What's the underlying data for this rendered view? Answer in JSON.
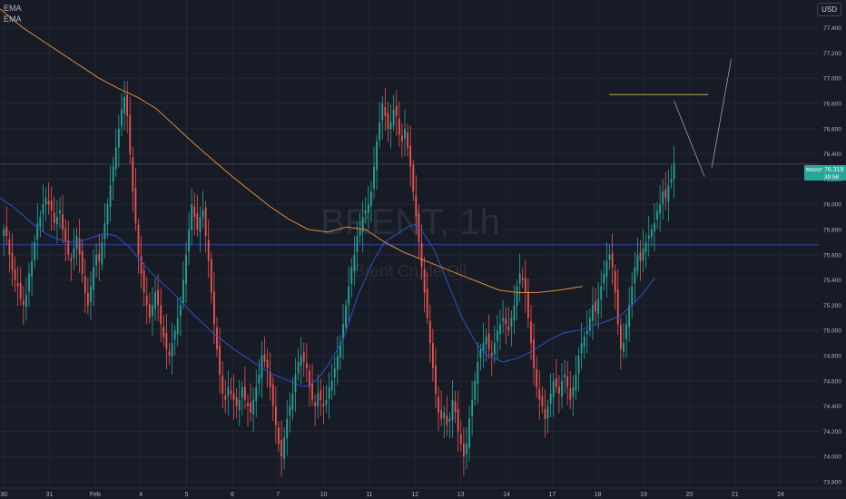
{
  "legend": {
    "items": [
      "EMA",
      "EMA"
    ]
  },
  "currency_button": "USD",
  "price_tag": {
    "symbol": "BRENT",
    "price": "76.319",
    "countdown": "39:58",
    "color": "#26a69a"
  },
  "watermark": {
    "symbol": "BRENT, 1h",
    "name": "Brent Crude Oil"
  },
  "colors": {
    "background": "#171b26",
    "up": "#26a69a",
    "down": "#ef5350",
    "ema_fast": "#2f4fc9",
    "ema_slow": "#d98b3a",
    "grid": "#232733",
    "axis_text": "#b2b5be"
  },
  "chart_data": {
    "type": "candlestick",
    "title": "",
    "timeframe": "1h",
    "y_ticks": [
      "77.400",
      "77.200",
      "77.000",
      "76.800",
      "76.600",
      "76.400",
      "76.200",
      "76.000",
      "75.800",
      "75.600",
      "75.400",
      "75.200",
      "75.000",
      "74.800",
      "74.600",
      "74.400",
      "74.200",
      "74.000",
      "73.800"
    ],
    "ylim": [
      73.75,
      77.62
    ],
    "x_ticks": [
      "30",
      "31",
      "Feb",
      "4",
      "5",
      "6",
      "7",
      "10",
      "11",
      "12",
      "13",
      "14",
      "17",
      "18",
      "19",
      "20",
      "21",
      "24"
    ],
    "x_tick_positions": [
      0,
      24,
      48,
      72,
      96,
      120,
      144,
      168,
      192,
      216,
      240,
      264,
      288,
      312,
      336,
      360,
      384,
      408
    ],
    "xlim": [
      -2,
      428
    ],
    "candles_close": [
      75.8,
      75.75,
      75.6,
      75.48,
      75.4,
      75.35,
      75.25,
      75.2,
      75.28,
      75.45,
      75.55,
      75.7,
      75.85,
      75.9,
      76.0,
      76.05,
      76.0,
      75.95,
      75.85,
      75.9,
      75.95,
      75.8,
      75.7,
      75.6,
      75.55,
      75.65,
      75.75,
      75.6,
      75.45,
      75.3,
      75.2,
      75.35,
      75.5,
      75.6,
      75.55,
      75.7,
      75.85,
      76.0,
      76.15,
      76.3,
      76.45,
      76.6,
      76.75,
      76.85,
      76.7,
      76.4,
      76.1,
      75.85,
      75.6,
      75.45,
      75.3,
      75.2,
      75.1,
      75.2,
      75.3,
      75.2,
      75.05,
      74.95,
      74.85,
      74.8,
      74.9,
      75.0,
      75.1,
      75.2,
      75.4,
      75.6,
      75.8,
      76.0,
      75.9,
      75.8,
      75.9,
      75.95,
      75.75,
      75.55,
      75.3,
      75.05,
      74.85,
      74.65,
      74.5,
      74.45,
      74.55,
      74.5,
      74.45,
      74.4,
      74.45,
      74.55,
      74.45,
      74.4,
      74.35,
      74.45,
      74.55,
      74.65,
      74.8,
      74.75,
      74.7,
      74.55,
      74.4,
      74.25,
      74.1,
      74.0,
      74.15,
      74.3,
      74.4,
      74.5,
      74.65,
      74.75,
      74.8,
      74.75,
      74.7,
      74.55,
      74.45,
      74.4,
      74.5,
      74.45,
      74.4,
      74.45,
      74.55,
      74.6,
      74.7,
      74.8,
      74.9,
      75.05,
      75.2,
      75.35,
      75.5,
      75.6,
      75.75,
      75.8,
      75.9,
      75.95,
      76.0,
      76.1,
      76.3,
      76.5,
      76.65,
      76.8,
      76.7,
      76.6,
      76.65,
      76.75,
      76.7,
      76.55,
      76.5,
      76.6,
      76.45,
      76.3,
      76.1,
      75.9,
      75.7,
      75.5,
      75.3,
      75.1,
      74.9,
      74.7,
      74.5,
      74.35,
      74.3,
      74.35,
      74.25,
      74.3,
      74.45,
      74.35,
      74.2,
      74.1,
      74.0,
      74.1,
      74.3,
      74.45,
      74.6,
      74.75,
      74.85,
      74.9,
      74.95,
      74.85,
      74.8,
      74.9,
      75.0,
      75.05,
      75.1,
      75.05,
      75.0,
      75.1,
      75.2,
      75.35,
      75.45,
      75.4,
      75.3,
      75.1,
      74.9,
      74.7,
      74.55,
      74.45,
      74.4,
      74.3,
      74.4,
      74.5,
      74.6,
      74.55,
      74.5,
      74.6,
      74.65,
      74.55,
      74.45,
      74.55,
      74.65,
      74.8,
      74.9,
      74.95,
      75.0,
      75.1,
      75.2,
      75.15,
      75.25,
      75.35,
      75.45,
      75.55,
      75.6,
      75.5,
      75.3,
      75.05,
      74.85,
      74.9,
      75.05,
      75.2,
      75.35,
      75.5,
      75.6,
      75.55,
      75.65,
      75.7,
      75.75,
      75.8,
      75.85,
      75.95,
      76.0,
      76.1,
      76.05,
      76.15,
      76.2,
      76.32
    ],
    "series": [
      {
        "name": "EMA",
        "color": "#2f4fc9"
      },
      {
        "name": "EMA",
        "color": "#d98b3a"
      }
    ],
    "ema_fast_values": [
      76.05,
      75.98,
      75.9,
      75.82,
      75.76,
      75.72,
      75.7,
      75.71,
      75.74,
      75.77,
      75.75,
      75.66,
      75.55,
      75.45,
      75.28,
      75.12,
      74.98,
      74.86,
      74.76,
      74.66,
      74.6,
      74.56,
      74.56,
      74.62,
      74.72,
      74.92,
      75.28,
      75.55,
      75.7,
      75.78,
      75.82,
      75.84,
      75.78,
      75.64,
      75.42,
      75.12,
      74.9,
      74.8,
      74.75,
      74.78,
      74.84,
      74.92,
      74.98,
      75.0,
      75.04,
      75.08,
      75.12,
      75.2,
      75.3,
      75.42
    ],
    "ema_fast_x": [
      -2,
      5,
      11,
      17,
      23,
      29,
      35,
      41,
      47,
      53,
      59,
      66,
      72,
      78,
      90,
      100,
      110,
      120,
      130,
      140,
      150,
      156,
      160,
      165,
      170,
      178,
      186,
      194,
      200,
      208,
      212,
      216,
      220,
      226,
      232,
      240,
      248,
      254,
      262,
      270,
      278,
      286,
      294,
      302,
      310,
      318,
      324,
      330,
      336,
      342
    ],
    "ema_slow_values": [
      77.55,
      77.4,
      77.3,
      77.2,
      77.1,
      77.0,
      76.92,
      76.85,
      76.76,
      76.62,
      76.48,
      76.35,
      76.22,
      76.1,
      75.98,
      75.88,
      75.8,
      75.78,
      75.82,
      75.8,
      75.7,
      75.62,
      75.56,
      75.5,
      75.44,
      75.38,
      75.32,
      75.3,
      75.3,
      75.32,
      75.35
    ],
    "ema_slow_x": [
      -2,
      10,
      20,
      30,
      40,
      50,
      60,
      70,
      80,
      90,
      100,
      110,
      120,
      130,
      140,
      150,
      160,
      170,
      180,
      190,
      200,
      210,
      220,
      230,
      240,
      250,
      260,
      270,
      280,
      292,
      304
    ]
  },
  "drawings": {
    "resistance_line": {
      "price": 76.87,
      "x_start": 318,
      "x_end": 370,
      "color": "#c8a05a"
    },
    "projection": {
      "points": [
        [
          352,
          76.82
        ],
        [
          368,
          76.22
        ],
        [
          382,
          77.15
        ]
      ],
      "color": "#9aa0a8"
    },
    "horizontal_levels": [
      {
        "price": 76.32,
        "color": "#3a3f4d"
      },
      {
        "price": 75.68,
        "color": "#2a4a9a"
      }
    ]
  }
}
